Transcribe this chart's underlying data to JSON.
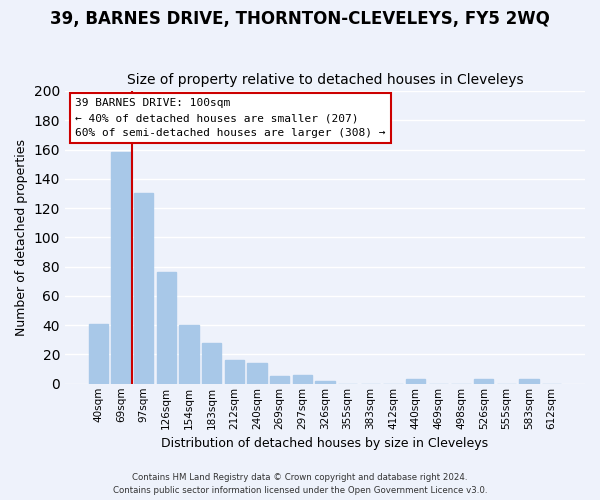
{
  "title": "39, BARNES DRIVE, THORNTON-CLEVELEYS, FY5 2WQ",
  "subtitle": "Size of property relative to detached houses in Cleveleys",
  "xlabel": "Distribution of detached houses by size in Cleveleys",
  "ylabel": "Number of detached properties",
  "bar_labels": [
    "40sqm",
    "69sqm",
    "97sqm",
    "126sqm",
    "154sqm",
    "183sqm",
    "212sqm",
    "240sqm",
    "269sqm",
    "297sqm",
    "326sqm",
    "355sqm",
    "383sqm",
    "412sqm",
    "440sqm",
    "469sqm",
    "498sqm",
    "526sqm",
    "555sqm",
    "583sqm",
    "612sqm"
  ],
  "bar_values": [
    41,
    158,
    130,
    76,
    40,
    28,
    16,
    14,
    5,
    6,
    2,
    0,
    0,
    0,
    3,
    0,
    0,
    3,
    0,
    3,
    0
  ],
  "bar_color": "#a8c8e8",
  "vline_x": 1.5,
  "vline_color": "#cc0000",
  "ylim": [
    0,
    200
  ],
  "yticks": [
    0,
    20,
    40,
    60,
    80,
    100,
    120,
    140,
    160,
    180,
    200
  ],
  "annotation_title": "39 BARNES DRIVE: 100sqm",
  "annotation_line1": "← 40% of detached houses are smaller (207)",
  "annotation_line2": "60% of semi-detached houses are larger (308) →",
  "annotation_box_color": "#ffffff",
  "annotation_box_edge": "#cc0000",
  "footer_line1": "Contains HM Land Registry data © Crown copyright and database right 2024.",
  "footer_line2": "Contains public sector information licensed under the Open Government Licence v3.0.",
  "background_color": "#eef2fb",
  "grid_color": "#ffffff",
  "title_fontsize": 12,
  "subtitle_fontsize": 10
}
